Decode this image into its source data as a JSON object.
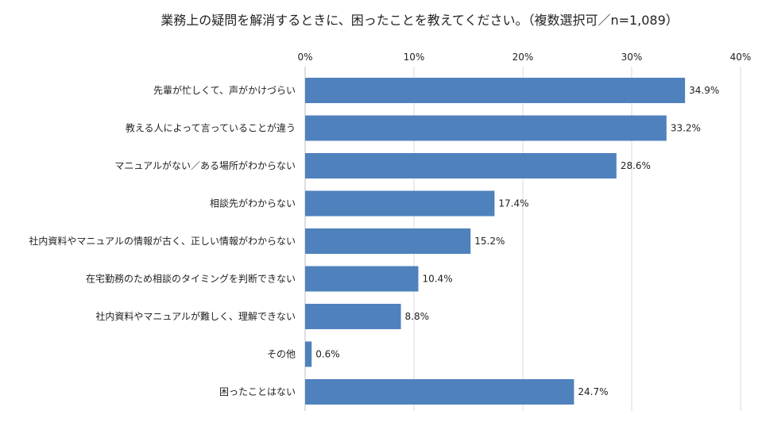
{
  "chart_data": {
    "type": "bar",
    "orientation": "horizontal",
    "title": "業務上の疑問を解消するときに、困ったことを教えてください。（複数選択可／n=1,089）",
    "categories": [
      "先輩が忙しくて、声がかけづらい",
      "教える人によって言っていることが違う",
      "マニュアルがない／ある場所がわからない",
      "相談先がわからない",
      "社内資料やマニュアルの情報が古く、正しい情報がわからない",
      "在宅勤務のため相談のタイミングを判断できない",
      "社内資料やマニュアルが難しく、理解できない",
      "その他",
      "困ったことはない"
    ],
    "values": [
      34.9,
      33.2,
      28.6,
      17.4,
      15.2,
      10.4,
      8.8,
      0.6,
      24.7
    ],
    "value_labels": [
      "34.9%",
      "33.2%",
      "28.6%",
      "17.4%",
      "15.2%",
      "10.4%",
      "8.8%",
      "0.6%",
      "24.7%"
    ],
    "xlim": [
      0,
      40
    ],
    "x_ticks": [
      0,
      10,
      20,
      30,
      40
    ],
    "x_tick_labels": [
      "0%",
      "10%",
      "20%",
      "30%",
      "40%"
    ],
    "xlabel": "",
    "ylabel": "",
    "grid": "vertical",
    "legend": "none",
    "axis_position": "top",
    "bar_color": "#4f81bd",
    "grid_color": "#d9d9d9"
  }
}
